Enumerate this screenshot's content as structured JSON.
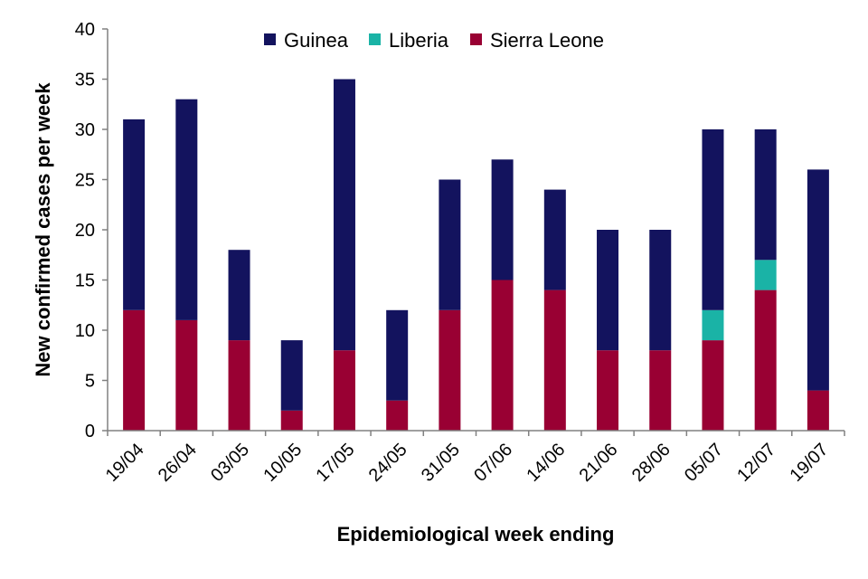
{
  "chart_data": {
    "type": "bar",
    "stacked": true,
    "categories": [
      "19/04",
      "26/04",
      "03/05",
      "10/05",
      "17/05",
      "24/05",
      "31/05",
      "07/06",
      "14/06",
      "21/06",
      "28/06",
      "05/07",
      "12/07",
      "19/07"
    ],
    "series": [
      {
        "name": "Sierra Leone",
        "color": "#990033",
        "values": [
          12,
          11,
          9,
          2,
          8,
          3,
          12,
          15,
          14,
          8,
          8,
          9,
          14,
          4
        ]
      },
      {
        "name": "Liberia",
        "color": "#1ab3a6",
        "values": [
          0,
          0,
          0,
          0,
          0,
          0,
          0,
          0,
          0,
          0,
          0,
          3,
          3,
          0
        ]
      },
      {
        "name": "Guinea",
        "color": "#13135e",
        "values": [
          19,
          22,
          9,
          7,
          27,
          9,
          13,
          12,
          10,
          12,
          12,
          18,
          13,
          22
        ]
      }
    ],
    "legend_order": [
      "Guinea",
      "Liberia",
      "Sierra Leone"
    ],
    "legend_position": "top",
    "title": "",
    "xlabel": "Epidemiological week ending",
    "ylabel": "New  confirmed cases per week",
    "ylim": [
      0,
      40
    ],
    "yticks": [
      0,
      5,
      10,
      15,
      20,
      25,
      30,
      35,
      40
    ],
    "grid": false
  }
}
